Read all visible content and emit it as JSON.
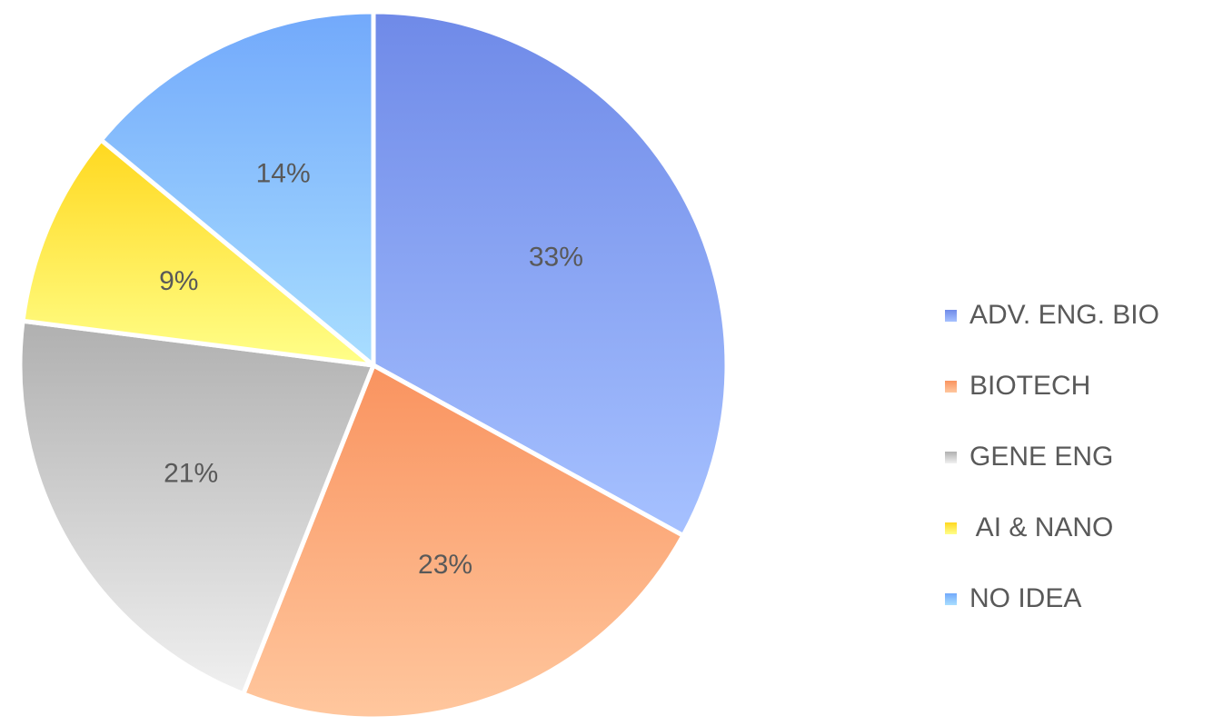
{
  "chart_data": {
    "type": "pie",
    "title": "",
    "legend_position": "right",
    "slices": [
      {
        "label": "ADV. ENG. BIO",
        "value": 33,
        "value_label": "33%",
        "color_dark": "#6f8ae8",
        "color_light": "#a6c1ff"
      },
      {
        "label": "BIOTECH",
        "value": 23,
        "value_label": "23%",
        "color_dark": "#f9935f",
        "color_light": "#ffc79e"
      },
      {
        "label": "GENE ENG",
        "value": 21,
        "value_label": "21%",
        "color_dark": "#b0b0b0",
        "color_light": "#f0f0f0"
      },
      {
        "label": " AI & NANO",
        "value": 9,
        "value_label": "9%",
        "color_dark": "#ffd81f",
        "color_light": "#ffff8a"
      },
      {
        "label": "NO IDEA",
        "value": 14,
        "value_label": "14%",
        "color_dark": "#72a9fb",
        "color_light": "#a9deff"
      }
    ]
  }
}
